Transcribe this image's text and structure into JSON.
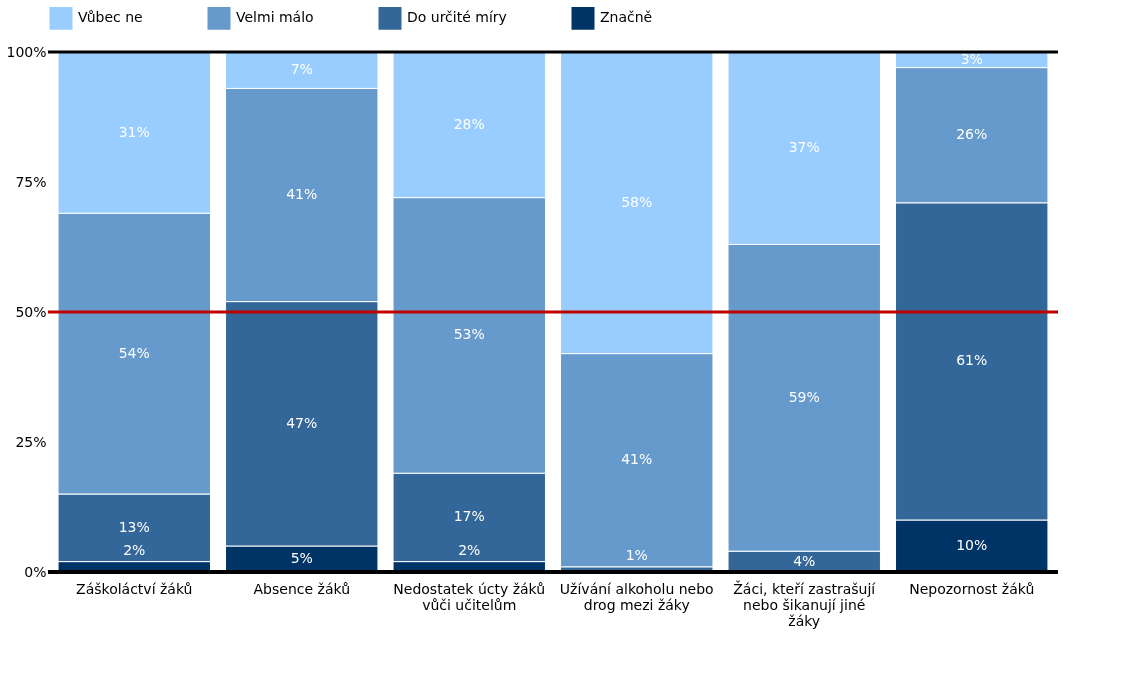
{
  "chart_data": {
    "type": "bar",
    "stacked": true,
    "categories": [
      "Záškoláctví žáků",
      "Absence žáků",
      "Nedostatek úcty žáků vůči učitelům",
      "Užívání alkoholu nebo drog mezi žáky",
      "Žáci, kteří zastrašují nebo šikanují jiné žáky",
      "Nepozornost žáků"
    ],
    "series": [
      {
        "name": "Značně",
        "color": "#003366",
        "values": [
          2,
          5,
          2,
          0,
          0,
          10
        ],
        "value_labels": [
          "2%",
          "5%",
          "2%",
          null,
          null,
          "10%"
        ]
      },
      {
        "name": "Do určité míry",
        "color": "#336699",
        "values": [
          13,
          47,
          17,
          1,
          4,
          61
        ],
        "value_labels": [
          "13%",
          "47%",
          "17%",
          "1%",
          "4%",
          "61%"
        ]
      },
      {
        "name": "Velmi málo",
        "color": "#6699cc",
        "values": [
          54,
          41,
          53,
          41,
          59,
          26
        ],
        "value_labels": [
          "54%",
          "41%",
          "53%",
          "41%",
          "59%",
          "26%"
        ]
      },
      {
        "name": "Vůbec ne",
        "color": "#99ccff",
        "values": [
          31,
          7,
          28,
          58,
          37,
          3
        ],
        "value_labels": [
          "31%",
          "7%",
          "28%",
          "58%",
          "37%",
          "3%"
        ]
      }
    ],
    "ylim": [
      0,
      100
    ],
    "yticks": [
      {
        "value": 0,
        "label": "0%"
      },
      {
        "value": 25,
        "label": "25%"
      },
      {
        "value": 50,
        "label": "50%"
      },
      {
        "value": 75,
        "label": "75%"
      },
      {
        "value": 100,
        "label": "100%"
      }
    ],
    "ref_lines": [
      {
        "axis": "y",
        "value": 50,
        "color": "#c00000"
      },
      {
        "axis": "y",
        "value": 100,
        "color": "#000000"
      }
    ],
    "legend": "top",
    "grid": false
  }
}
